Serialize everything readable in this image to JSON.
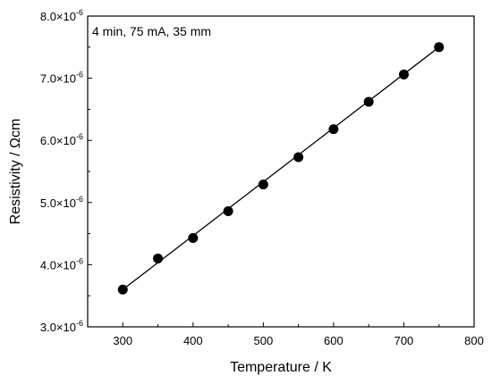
{
  "chart_data": {
    "type": "scatter",
    "title": "",
    "annotation": "4 min, 75 mA, 35 mm",
    "xlabel": "Temperature / K",
    "ylabel": "Resistivity / Ωcm",
    "xlim": [
      250,
      800
    ],
    "ylim": [
      3e-06,
      8e-06
    ],
    "x_ticks": [
      300,
      400,
      500,
      600,
      700,
      800
    ],
    "x_tick_labels": [
      "300",
      "400",
      "500",
      "600",
      "700",
      "800"
    ],
    "y_ticks": [
      3e-06,
      4e-06,
      5e-06,
      6e-06,
      7e-06,
      8e-06
    ],
    "y_tick_labels": [
      {
        "mantissa": "3.0",
        "exp": "-6"
      },
      {
        "mantissa": "4.0",
        "exp": "-6"
      },
      {
        "mantissa": "5.0",
        "exp": "-6"
      },
      {
        "mantissa": "6.0",
        "exp": "-6"
      },
      {
        "mantissa": "7.0",
        "exp": "-6"
      },
      {
        "mantissa": "8.0",
        "exp": "-6"
      }
    ],
    "grid": false,
    "series": [
      {
        "x": [
          300,
          350,
          400,
          450,
          500,
          550,
          600,
          650,
          700,
          750
        ],
        "y": [
          3.6e-06,
          4.1e-06,
          4.43e-06,
          4.86e-06,
          5.29e-06,
          5.73e-06,
          6.18e-06,
          6.62e-06,
          7.06e-06,
          7.5e-06
        ],
        "marker": "circle",
        "color": "#000000"
      }
    ],
    "fit_line": {
      "x": [
        300,
        750
      ],
      "y": [
        3.6e-06,
        7.5e-06
      ],
      "color": "#000000"
    }
  }
}
